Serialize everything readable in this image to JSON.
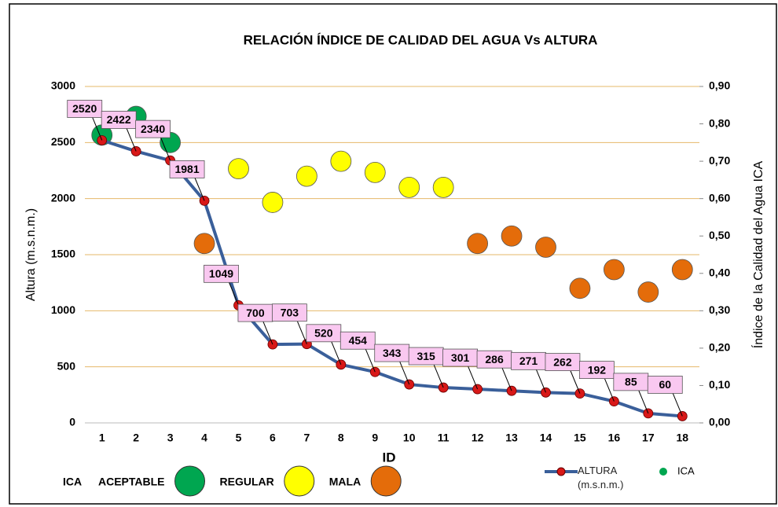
{
  "chart_data": {
    "type": "line",
    "title": "RELACIÓN ÍNDICE DE CALIDAD DEL AGUA Vs ALTURA",
    "x_label": "ID",
    "y_label": "Altura (m.s.n.m.)",
    "y2_label": "Índice de la Calidad del Agua ICA",
    "categories": [
      "1",
      "2",
      "3",
      "4",
      "5",
      "6",
      "7",
      "8",
      "9",
      "10",
      "11",
      "12",
      "13",
      "14",
      "15",
      "16",
      "17",
      "18"
    ],
    "ylim": [
      0,
      3000
    ],
    "yticks": [
      0,
      500,
      1000,
      1500,
      2000,
      2500,
      3000
    ],
    "y2lim": [
      0,
      0.9
    ],
    "y2ticks": [
      {
        "value": 0,
        "label": "0,00"
      },
      {
        "value": 0.1,
        "label": "0,10"
      },
      {
        "value": 0.2,
        "label": "0,20"
      },
      {
        "value": 0.3,
        "label": "0,30"
      },
      {
        "value": 0.4,
        "label": "0,40"
      },
      {
        "value": 0.5,
        "label": "0,50"
      },
      {
        "value": 0.6,
        "label": "0,60"
      },
      {
        "value": 0.7,
        "label": "0,70"
      },
      {
        "value": 0.8,
        "label": "0,80"
      },
      {
        "value": 0.9,
        "label": "0,90"
      }
    ],
    "grid": true,
    "series": [
      {
        "name": "ALTURA (m.s.n.m.)",
        "color": "#3a5f9a",
        "marker_color": "#d81818",
        "values": [
          2520,
          2422,
          2340,
          1981,
          1049,
          700,
          703,
          520,
          454,
          343,
          315,
          301,
          286,
          271,
          262,
          192,
          85,
          60
        ]
      },
      {
        "name": "ICA",
        "axis": "y2",
        "color": "#00a650",
        "values": [
          0.77,
          0.82,
          0.75,
          0.48,
          0.68,
          0.59,
          0.66,
          0.7,
          0.67,
          0.63,
          0.63,
          0.48,
          0.5,
          0.47,
          0.36,
          0.41,
          0.35,
          0.41
        ],
        "colors": [
          "#00a650",
          "#00a650",
          "#00a650",
          "#e46c0a",
          "#ffff00",
          "#ffff00",
          "#ffff00",
          "#ffff00",
          "#ffff00",
          "#ffff00",
          "#ffff00",
          "#e46c0a",
          "#e46c0a",
          "#e46c0a",
          "#e46c0a",
          "#e46c0a",
          "#e46c0a",
          "#e46c0a"
        ]
      }
    ],
    "quality_legend": {
      "title": "ICA",
      "items": [
        {
          "label": "ACEPTABLE",
          "color": "#00a650"
        },
        {
          "label": "REGULAR",
          "color": "#ffff00"
        },
        {
          "label": "MALA",
          "color": "#e46c0a"
        }
      ]
    }
  }
}
